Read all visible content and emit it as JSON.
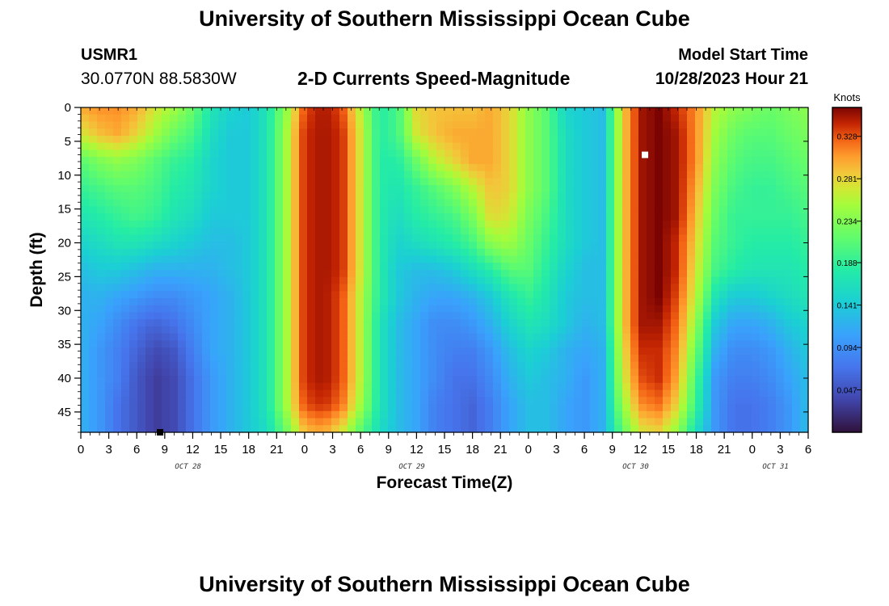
{
  "header": {
    "title": "University of Southern Mississippi Ocean Cube",
    "station_id": "USMR1",
    "station_coords": "30.0770N  88.5830W",
    "subtitle": "2-D Currents Speed-Magnitude",
    "model_start_label": "Model Start Time",
    "model_start_value": "10/28/2023 Hour 21"
  },
  "footer": {
    "title": "University of Southern Mississippi Ocean Cube"
  },
  "chart_data": {
    "type": "heatmap",
    "title": "2-D Currents Speed-Magnitude",
    "xlabel": "Forecast Time(Z)",
    "ylabel": "Depth (ft)",
    "x_unit": "hours after 10/28/2023 00Z",
    "xlim": [
      0,
      78
    ],
    "ylim": [
      48,
      0
    ],
    "x_ticks": [
      {
        "h": 0,
        "label": "0"
      },
      {
        "h": 3,
        "label": "3"
      },
      {
        "h": 6,
        "label": "6"
      },
      {
        "h": 9,
        "label": "9"
      },
      {
        "h": 12,
        "label": "12"
      },
      {
        "h": 15,
        "label": "15"
      },
      {
        "h": 18,
        "label": "18"
      },
      {
        "h": 21,
        "label": "21"
      },
      {
        "h": 24,
        "label": "0"
      },
      {
        "h": 27,
        "label": "3"
      },
      {
        "h": 30,
        "label": "6"
      },
      {
        "h": 33,
        "label": "9"
      },
      {
        "h": 36,
        "label": "12"
      },
      {
        "h": 39,
        "label": "15"
      },
      {
        "h": 42,
        "label": "18"
      },
      {
        "h": 45,
        "label": "21"
      },
      {
        "h": 48,
        "label": "0"
      },
      {
        "h": 51,
        "label": "3"
      },
      {
        "h": 54,
        "label": "6"
      },
      {
        "h": 57,
        "label": "9"
      },
      {
        "h": 60,
        "label": "12"
      },
      {
        "h": 63,
        "label": "15"
      },
      {
        "h": 66,
        "label": "18"
      },
      {
        "h": 69,
        "label": "21"
      },
      {
        "h": 72,
        "label": "0"
      },
      {
        "h": 75,
        "label": "3"
      },
      {
        "h": 78,
        "label": "6"
      }
    ],
    "y_ticks": [
      0,
      5,
      10,
      15,
      20,
      25,
      30,
      35,
      40,
      45
    ],
    "date_labels": [
      {
        "h": 11.5,
        "label": "OCT 28"
      },
      {
        "h": 35.5,
        "label": "OCT 29"
      },
      {
        "h": 59.5,
        "label": "OCT 30"
      },
      {
        "h": 74.5,
        "label": "OCT 31"
      }
    ],
    "colorbar": {
      "title": "Knots",
      "min": 0.0,
      "max": 0.36,
      "ticks": [
        0.047,
        0.094,
        0.141,
        0.188,
        0.234,
        0.281,
        0.328
      ]
    },
    "x_hours": [
      0,
      2,
      4,
      6,
      8,
      10,
      12,
      14,
      16,
      18,
      20,
      22,
      24,
      26,
      28,
      30,
      32,
      34,
      36,
      38,
      40,
      42,
      44,
      46,
      48,
      50,
      52,
      54,
      56,
      58,
      60,
      62,
      64,
      66,
      68,
      70,
      72,
      74,
      76,
      78
    ],
    "depths_ft": [
      0,
      4,
      8,
      12,
      16,
      20,
      24,
      28,
      32,
      36,
      40,
      44,
      48
    ],
    "speed_knots_by_depth": [
      [
        0.3,
        0.31,
        0.31,
        0.3,
        0.27,
        0.25,
        0.22,
        0.17,
        0.15,
        0.14,
        0.17,
        0.24,
        0.33,
        0.35,
        0.33,
        0.26,
        0.18,
        0.2,
        0.28,
        0.29,
        0.29,
        0.29,
        0.3,
        0.28,
        0.24,
        0.21,
        0.15,
        0.14,
        0.13,
        0.28,
        0.35,
        0.36,
        0.34,
        0.31,
        0.26,
        0.24,
        0.23,
        0.22,
        0.23,
        0.24
      ],
      [
        0.27,
        0.29,
        0.3,
        0.28,
        0.25,
        0.22,
        0.2,
        0.16,
        0.14,
        0.14,
        0.17,
        0.25,
        0.34,
        0.35,
        0.34,
        0.27,
        0.18,
        0.2,
        0.27,
        0.29,
        0.3,
        0.3,
        0.3,
        0.28,
        0.24,
        0.21,
        0.16,
        0.14,
        0.13,
        0.28,
        0.35,
        0.36,
        0.35,
        0.31,
        0.25,
        0.22,
        0.21,
        0.21,
        0.22,
        0.23
      ],
      [
        0.21,
        0.23,
        0.24,
        0.23,
        0.21,
        0.19,
        0.18,
        0.15,
        0.14,
        0.14,
        0.17,
        0.25,
        0.34,
        0.35,
        0.34,
        0.27,
        0.18,
        0.18,
        0.22,
        0.26,
        0.28,
        0.3,
        0.3,
        0.28,
        0.24,
        0.21,
        0.16,
        0.14,
        0.13,
        0.28,
        0.35,
        0.36,
        0.35,
        0.31,
        0.24,
        0.21,
        0.2,
        0.2,
        0.21,
        0.22
      ],
      [
        0.19,
        0.2,
        0.21,
        0.21,
        0.2,
        0.18,
        0.17,
        0.15,
        0.14,
        0.14,
        0.17,
        0.25,
        0.34,
        0.35,
        0.34,
        0.27,
        0.18,
        0.17,
        0.19,
        0.21,
        0.23,
        0.26,
        0.29,
        0.28,
        0.24,
        0.21,
        0.16,
        0.14,
        0.13,
        0.28,
        0.35,
        0.36,
        0.35,
        0.3,
        0.23,
        0.2,
        0.19,
        0.19,
        0.2,
        0.21
      ],
      [
        0.17,
        0.18,
        0.19,
        0.2,
        0.19,
        0.17,
        0.16,
        0.14,
        0.14,
        0.14,
        0.17,
        0.25,
        0.34,
        0.35,
        0.34,
        0.27,
        0.18,
        0.16,
        0.18,
        0.19,
        0.2,
        0.23,
        0.28,
        0.27,
        0.23,
        0.2,
        0.16,
        0.14,
        0.13,
        0.28,
        0.35,
        0.36,
        0.35,
        0.29,
        0.22,
        0.19,
        0.19,
        0.19,
        0.19,
        0.2
      ],
      [
        0.15,
        0.16,
        0.17,
        0.17,
        0.16,
        0.15,
        0.14,
        0.13,
        0.13,
        0.14,
        0.17,
        0.25,
        0.34,
        0.35,
        0.34,
        0.27,
        0.18,
        0.15,
        0.16,
        0.17,
        0.18,
        0.2,
        0.24,
        0.25,
        0.22,
        0.19,
        0.16,
        0.14,
        0.13,
        0.28,
        0.35,
        0.36,
        0.34,
        0.28,
        0.21,
        0.19,
        0.18,
        0.18,
        0.18,
        0.19
      ],
      [
        0.13,
        0.14,
        0.14,
        0.13,
        0.12,
        0.12,
        0.12,
        0.12,
        0.13,
        0.14,
        0.17,
        0.25,
        0.34,
        0.35,
        0.34,
        0.27,
        0.18,
        0.14,
        0.13,
        0.13,
        0.14,
        0.16,
        0.18,
        0.21,
        0.21,
        0.18,
        0.15,
        0.13,
        0.13,
        0.28,
        0.35,
        0.36,
        0.34,
        0.27,
        0.2,
        0.18,
        0.17,
        0.17,
        0.17,
        0.18
      ],
      [
        0.12,
        0.12,
        0.11,
        0.1,
        0.09,
        0.09,
        0.1,
        0.11,
        0.12,
        0.14,
        0.17,
        0.25,
        0.34,
        0.35,
        0.33,
        0.26,
        0.18,
        0.14,
        0.12,
        0.11,
        0.11,
        0.12,
        0.14,
        0.17,
        0.19,
        0.17,
        0.14,
        0.13,
        0.13,
        0.28,
        0.35,
        0.36,
        0.33,
        0.26,
        0.17,
        0.14,
        0.14,
        0.15,
        0.16,
        0.17
      ],
      [
        0.12,
        0.11,
        0.09,
        0.07,
        0.06,
        0.07,
        0.09,
        0.11,
        0.12,
        0.14,
        0.17,
        0.25,
        0.34,
        0.35,
        0.33,
        0.26,
        0.17,
        0.13,
        0.11,
        0.09,
        0.09,
        0.1,
        0.12,
        0.15,
        0.17,
        0.16,
        0.14,
        0.12,
        0.13,
        0.28,
        0.35,
        0.35,
        0.32,
        0.24,
        0.14,
        0.11,
        0.11,
        0.12,
        0.14,
        0.15
      ],
      [
        0.12,
        0.1,
        0.08,
        0.06,
        0.04,
        0.05,
        0.08,
        0.11,
        0.12,
        0.14,
        0.17,
        0.25,
        0.34,
        0.35,
        0.33,
        0.26,
        0.17,
        0.13,
        0.11,
        0.09,
        0.08,
        0.08,
        0.1,
        0.13,
        0.15,
        0.14,
        0.12,
        0.11,
        0.12,
        0.27,
        0.34,
        0.34,
        0.31,
        0.22,
        0.12,
        0.09,
        0.09,
        0.1,
        0.12,
        0.14
      ],
      [
        0.12,
        0.1,
        0.08,
        0.05,
        0.03,
        0.04,
        0.07,
        0.1,
        0.12,
        0.14,
        0.17,
        0.25,
        0.34,
        0.35,
        0.33,
        0.26,
        0.17,
        0.13,
        0.11,
        0.09,
        0.07,
        0.07,
        0.09,
        0.12,
        0.14,
        0.13,
        0.12,
        0.1,
        0.12,
        0.26,
        0.33,
        0.34,
        0.3,
        0.2,
        0.1,
        0.08,
        0.08,
        0.09,
        0.11,
        0.13
      ],
      [
        0.12,
        0.1,
        0.07,
        0.05,
        0.03,
        0.04,
        0.07,
        0.1,
        0.12,
        0.14,
        0.17,
        0.25,
        0.33,
        0.34,
        0.32,
        0.25,
        0.17,
        0.13,
        0.11,
        0.08,
        0.07,
        0.06,
        0.08,
        0.11,
        0.13,
        0.13,
        0.11,
        0.1,
        0.12,
        0.24,
        0.31,
        0.32,
        0.28,
        0.19,
        0.1,
        0.07,
        0.07,
        0.08,
        0.1,
        0.13
      ],
      [
        0.12,
        0.1,
        0.07,
        0.05,
        0.03,
        0.04,
        0.07,
        0.1,
        0.12,
        0.14,
        0.16,
        0.22,
        0.29,
        0.3,
        0.27,
        0.21,
        0.16,
        0.13,
        0.11,
        0.08,
        0.07,
        0.06,
        0.08,
        0.11,
        0.13,
        0.13,
        0.11,
        0.1,
        0.12,
        0.21,
        0.27,
        0.28,
        0.24,
        0.16,
        0.1,
        0.07,
        0.07,
        0.08,
        0.1,
        0.13
      ]
    ],
    "markers": [
      {
        "h": 60.5,
        "depth": 7,
        "color": "#ffffff"
      },
      {
        "h": 8.5,
        "depth": 48,
        "color": "#000000"
      }
    ]
  }
}
